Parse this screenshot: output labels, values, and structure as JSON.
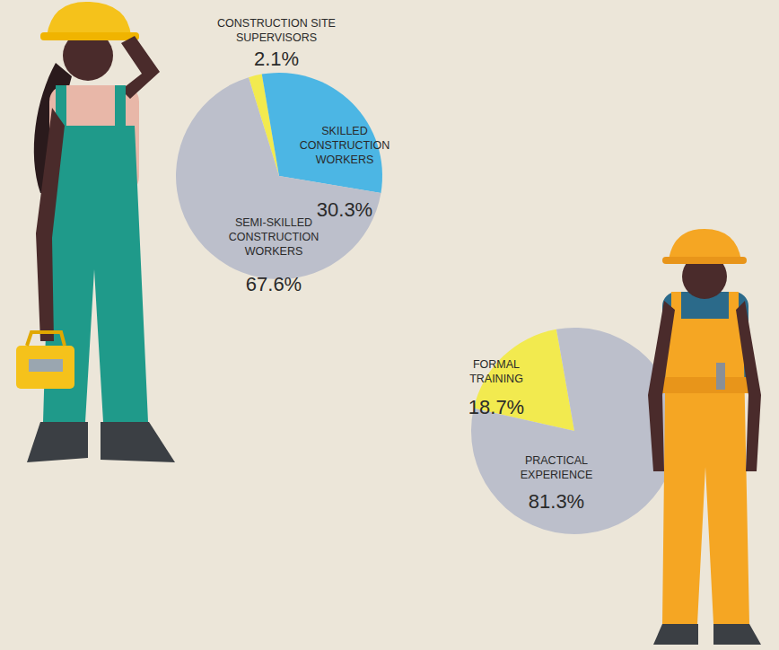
{
  "chart_data": [
    {
      "type": "pie",
      "categories": [
        "CONSTRUCTION SITE SUPERVISORS",
        "SKILLED CONSTRUCTION WORKERS",
        "SEMI-SKILLED CONSTRUCTION WORKERS"
      ],
      "values": [
        2.1,
        30.3,
        67.6
      ],
      "value_labels": [
        "2.1%",
        "30.3%",
        "67.6%"
      ],
      "colors": [
        "#f2ea4f",
        "#4cb6e4",
        "#bcbfcb"
      ],
      "data_labels": true
    },
    {
      "type": "pie",
      "categories": [
        "FORMAL TRAINING",
        "PRACTICAL EXPERIENCE"
      ],
      "values": [
        18.7,
        81.3
      ],
      "value_labels": [
        "18.7%",
        "81.3%"
      ],
      "colors": [
        "#f2ea4f",
        "#bcbfcb"
      ],
      "data_labels": true
    }
  ]
}
